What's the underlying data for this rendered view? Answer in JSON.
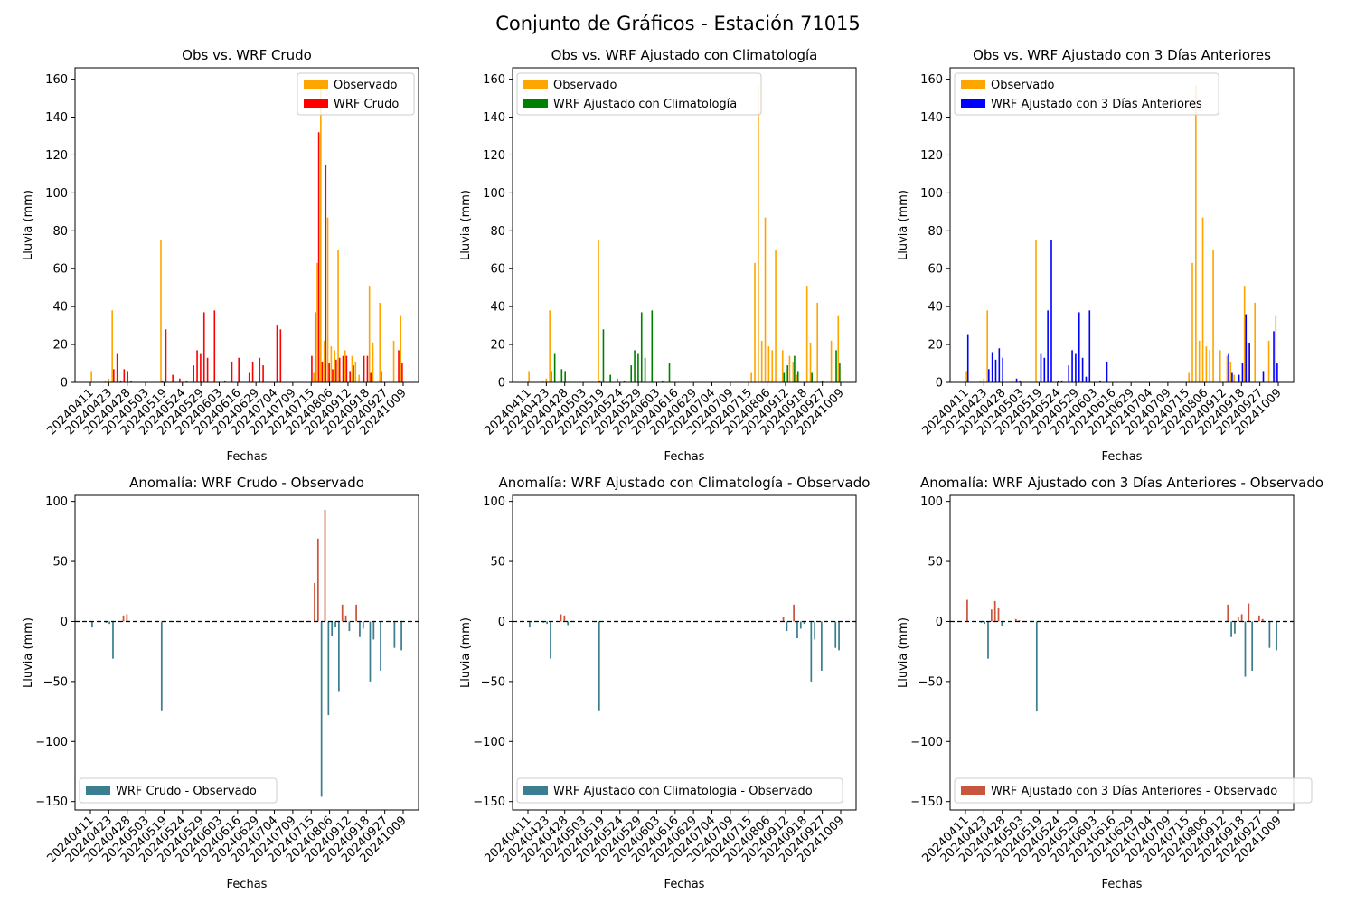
{
  "figure": {
    "title": "Conjunto de Gráficos - Estación 71015"
  },
  "colors": {
    "observed": "#FFA500",
    "wrf_raw": "#FF0000",
    "wrf_clim": "#008000",
    "wrf_3d": "#0000FF",
    "anomaly_negative": "#3B7E8F",
    "anomaly_positive": "#C8553D"
  },
  "chart_data": [
    {
      "type": "bar",
      "title": "Obs vs. WRF Crudo",
      "xlabel": "Fechas",
      "ylabel": "Lluvia (mm)",
      "ylim": [
        0,
        166
      ],
      "yticks": [
        0,
        20,
        40,
        60,
        80,
        100,
        120,
        140,
        160
      ],
      "xticklabels": [
        "20240411",
        "20240423",
        "20240428",
        "20240503",
        "20240519",
        "20240524",
        "20240529",
        "20240603",
        "20240616",
        "20240629",
        "20240704",
        "20240709",
        "20240715",
        "20240806",
        "20240912",
        "20240918",
        "20240927",
        "20241009"
      ],
      "legend": "top-right",
      "series": [
        {
          "name": "Observado",
          "color_key": "observed",
          "values": [
            6,
            0,
            0,
            0,
            1,
            2,
            38,
            0,
            0,
            0,
            0,
            0,
            0,
            0,
            0,
            0,
            0,
            0,
            0,
            0,
            75,
            0,
            0,
            0,
            0,
            0,
            0,
            0,
            0,
            0,
            0,
            0,
            0,
            0,
            0,
            0,
            0,
            0,
            0,
            0,
            0,
            0,
            0,
            0,
            0,
            0,
            0,
            0,
            0,
            0,
            0,
            0,
            0,
            0,
            0,
            0,
            0,
            0,
            0,
            0,
            0,
            0,
            0,
            0,
            5,
            63,
            157,
            22,
            87,
            19,
            17,
            70,
            0,
            17,
            0,
            14,
            11,
            4,
            0,
            0,
            51,
            21,
            0,
            42,
            0,
            0,
            0,
            22,
            0,
            35
          ]
        },
        {
          "name": "WRF Crudo",
          "color_key": "wrf_raw",
          "values": [
            0,
            0,
            0,
            0,
            0,
            0,
            7,
            15,
            1,
            7,
            6,
            1,
            0,
            0,
            0,
            0,
            0,
            0,
            0,
            0,
            1,
            28,
            0,
            4,
            0,
            2,
            0,
            1,
            0,
            9,
            17,
            15,
            37,
            13,
            0,
            38,
            0,
            0,
            1,
            0,
            11,
            0,
            13,
            0,
            0,
            5,
            11,
            0,
            13,
            9,
            0,
            0,
            0,
            30,
            28,
            0,
            0,
            0,
            0,
            0,
            0,
            0,
            0,
            14,
            37,
            132,
            11,
            115,
            10,
            7,
            12,
            13,
            14,
            14,
            6,
            9,
            0,
            0,
            14,
            14,
            5,
            0,
            0,
            6,
            0,
            0,
            0,
            0,
            17,
            10
          ]
        }
      ]
    },
    {
      "type": "bar",
      "title": "Obs vs. WRF Ajustado con Climatología",
      "xlabel": "Fechas",
      "ylabel": "Lluvia (mm)",
      "ylim": [
        0,
        166
      ],
      "yticks": [
        0,
        20,
        40,
        60,
        80,
        100,
        120,
        140,
        160
      ],
      "xticklabels": [
        "20240411",
        "20240423",
        "20240428",
        "20240503",
        "20240519",
        "20240524",
        "20240529",
        "20240603",
        "20240616",
        "20240629",
        "20240704",
        "20240709",
        "20240715",
        "20240806",
        "20240912",
        "20240918",
        "20240927",
        "20241009"
      ],
      "legend": "top-left",
      "series": [
        {
          "name": "Observado",
          "color_key": "observed",
          "values": [
            6,
            0,
            0,
            0,
            1,
            2,
            38,
            0,
            0,
            0,
            0,
            0,
            0,
            0,
            0,
            0,
            0,
            0,
            0,
            0,
            75,
            0,
            0,
            0,
            0,
            0,
            0,
            0,
            0,
            0,
            0,
            0,
            0,
            0,
            0,
            0,
            0,
            0,
            0,
            0,
            0,
            0,
            0,
            0,
            0,
            0,
            0,
            0,
            0,
            0,
            0,
            0,
            0,
            0,
            0,
            0,
            0,
            0,
            0,
            0,
            0,
            0,
            0,
            0,
            5,
            63,
            157,
            22,
            87,
            19,
            17,
            70,
            0,
            17,
            0,
            14,
            11,
            4,
            0,
            0,
            51,
            21,
            0,
            42,
            0,
            0,
            0,
            22,
            0,
            35
          ]
        },
        {
          "name": "WRF Ajustado con Climatología",
          "color_key": "wrf_clim",
          "values": [
            0,
            0,
            0,
            0,
            0,
            0,
            6,
            15,
            0,
            7,
            6,
            0,
            0,
            0,
            0,
            0,
            0,
            0,
            0,
            0,
            1,
            28,
            0,
            4,
            0,
            2,
            0,
            1,
            0,
            9,
            17,
            15,
            37,
            13,
            0,
            38,
            0,
            0,
            1,
            0,
            10,
            0,
            0,
            0,
            0,
            0,
            0,
            0,
            0,
            0,
            0,
            0,
            0,
            0,
            0,
            0,
            0,
            0,
            0,
            0,
            0,
            0,
            0,
            0,
            0,
            0,
            0,
            0,
            0,
            0,
            0,
            0,
            0,
            5,
            9,
            0,
            14,
            6,
            0,
            0,
            0,
            5,
            0,
            0,
            1,
            0,
            0,
            0,
            17,
            10
          ]
        }
      ]
    },
    {
      "type": "bar",
      "title": "Obs vs. WRF Ajustado con 3 Días Anteriores",
      "xlabel": "Fechas",
      "ylabel": "Lluvia (mm)",
      "ylim": [
        0,
        166
      ],
      "yticks": [
        0,
        20,
        40,
        60,
        80,
        100,
        120,
        140,
        160
      ],
      "xticklabels": [
        "20240411",
        "20240423",
        "20240428",
        "20240503",
        "20240519",
        "20240524",
        "20240529",
        "20240603",
        "20240616",
        "20240629",
        "20240704",
        "20240709",
        "20240715",
        "20240806",
        "20240912",
        "20240918",
        "20240927",
        "20241009"
      ],
      "legend": "top-left",
      "series": [
        {
          "name": "Observado",
          "color_key": "observed",
          "values": [
            6,
            0,
            0,
            0,
            1,
            2,
            38,
            0,
            0,
            0,
            0,
            0,
            0,
            0,
            0,
            0,
            0,
            0,
            0,
            0,
            75,
            0,
            0,
            0,
            0,
            0,
            0,
            0,
            0,
            0,
            0,
            0,
            0,
            0,
            0,
            0,
            0,
            0,
            0,
            0,
            0,
            0,
            0,
            0,
            0,
            0,
            0,
            0,
            0,
            0,
            0,
            0,
            0,
            0,
            0,
            0,
            0,
            0,
            0,
            0,
            0,
            0,
            0,
            0,
            5,
            63,
            157,
            22,
            87,
            19,
            17,
            70,
            0,
            17,
            0,
            14,
            11,
            4,
            0,
            0,
            51,
            21,
            0,
            42,
            0,
            0,
            0,
            22,
            0,
            35
          ]
        },
        {
          "name": "WRF Ajustado con 3 Días Anteriores",
          "color_key": "wrf_3d",
          "values": [
            25,
            0,
            0,
            0,
            0,
            0,
            7,
            16,
            12,
            18,
            13,
            0,
            0,
            0,
            2,
            1,
            0,
            0,
            0,
            0,
            0,
            15,
            13,
            38,
            75,
            0,
            1,
            1,
            0,
            9,
            17,
            15,
            37,
            13,
            3,
            38,
            0,
            0,
            1,
            0,
            11,
            0,
            0,
            0,
            0,
            0,
            0,
            0,
            0,
            0,
            0,
            0,
            0,
            0,
            0,
            0,
            0,
            0,
            0,
            0,
            0,
            0,
            0,
            0,
            0,
            0,
            0,
            0,
            0,
            0,
            0,
            0,
            0,
            0,
            0,
            15,
            5,
            0,
            4,
            10,
            36,
            21,
            0,
            0,
            0,
            6,
            0,
            0,
            27,
            10
          ]
        }
      ]
    },
    {
      "type": "bar",
      "title": "Anomalía: WRF Crudo - Observado",
      "xlabel": "Fechas",
      "ylabel": "Lluvia (mm)",
      "ylim": [
        -157,
        105
      ],
      "yticks": [
        -150,
        -100,
        -50,
        0,
        50,
        100
      ],
      "xticklabels": [
        "20240411",
        "20240423",
        "20240428",
        "20240503",
        "20240519",
        "20240524",
        "20240529",
        "20240603",
        "20240616",
        "20240629",
        "20240704",
        "20240709",
        "20240715",
        "20240806",
        "20240912",
        "20240918",
        "20240927",
        "20241009"
      ],
      "legend": "bottom-left",
      "series": [
        {
          "name": "WRF Crudo - Observado",
          "values": [
            -5,
            0,
            0,
            0,
            -1,
            -2,
            -31,
            0,
            0,
            5,
            6,
            0,
            0,
            0,
            0,
            0,
            0,
            0,
            0,
            0,
            -74,
            0,
            0,
            0,
            0,
            0,
            0,
            0,
            0,
            0,
            0,
            0,
            0,
            0,
            0,
            0,
            0,
            0,
            0,
            0,
            0,
            0,
            0,
            0,
            0,
            0,
            0,
            0,
            0,
            0,
            0,
            0,
            0,
            0,
            0,
            0,
            0,
            0,
            0,
            0,
            0,
            0,
            0,
            0,
            32,
            69,
            -146,
            93,
            -78,
            -12,
            -5,
            -58,
            14,
            5,
            -8,
            0,
            14,
            -13,
            -6,
            0,
            -50,
            -15,
            0,
            -41,
            0,
            0,
            0,
            -22,
            0,
            -24
          ]
        }
      ]
    },
    {
      "type": "bar",
      "title": "Anomalía: WRF Ajustado con Climatología - Observado",
      "xlabel": "Fechas",
      "ylabel": "Lluvia (mm)",
      "ylim": [
        -157,
        105
      ],
      "yticks": [
        -150,
        -100,
        -50,
        0,
        50,
        100
      ],
      "xticklabels": [
        "20240411",
        "20240423",
        "20240428",
        "20240503",
        "20240519",
        "20240524",
        "20240529",
        "20240603",
        "20240616",
        "20240629",
        "20240704",
        "20240709",
        "20240715",
        "20240806",
        "20240912",
        "20240918",
        "20240927",
        "20241009"
      ],
      "legend": "bottom-left",
      "series": [
        {
          "name": "WRF Ajustado con Climatologia - Observado",
          "values": [
            -5,
            0,
            0,
            0,
            -1,
            -2,
            -31,
            0,
            0,
            6,
            5,
            -3,
            0,
            0,
            0,
            0,
            0,
            0,
            0,
            0,
            -74,
            0,
            0,
            0,
            0,
            0,
            0,
            0,
            0,
            0,
            0,
            0,
            0,
            0,
            0,
            0,
            0,
            0,
            0,
            0,
            0,
            0,
            0,
            0,
            0,
            0,
            0,
            0,
            0,
            0,
            0,
            0,
            0,
            0,
            0,
            0,
            0,
            0,
            0,
            0,
            0,
            0,
            0,
            0,
            0,
            0,
            0,
            0,
            0,
            0,
            0,
            0,
            0,
            4,
            -8,
            0,
            14,
            -14,
            -6,
            -2,
            0,
            -50,
            -15,
            0,
            -41,
            0,
            0,
            0,
            -22,
            -24
          ]
        }
      ]
    },
    {
      "type": "bar",
      "title": "Anomalía: WRF Ajustado con 3 Días Anteriores - Observado",
      "xlabel": "Fechas",
      "ylabel": "Lluvia (mm)",
      "ylim": [
        -157,
        105
      ],
      "yticks": [
        -150,
        -100,
        -50,
        0,
        50,
        100
      ],
      "xticklabels": [
        "20240411",
        "20240423",
        "20240428",
        "20240503",
        "20240519",
        "20240524",
        "20240529",
        "20240603",
        "20240616",
        "20240629",
        "20240704",
        "20240709",
        "20240715",
        "20240806",
        "20240912",
        "20240918",
        "20240927",
        "20241009"
      ],
      "legend": "bottom-left",
      "series": [
        {
          "name": "WRF Ajustado con 3 Días Anteriores - Observado",
          "values": [
            18,
            0,
            0,
            0,
            -1,
            -2,
            -31,
            10,
            17,
            11,
            -4,
            0,
            0,
            0,
            2,
            1,
            0,
            0,
            0,
            0,
            -75,
            0,
            0,
            0,
            0,
            0,
            0,
            0,
            0,
            0,
            0,
            0,
            0,
            0,
            0,
            0,
            0,
            0,
            0,
            0,
            0,
            0,
            0,
            0,
            0,
            0,
            0,
            0,
            0,
            0,
            0,
            0,
            0,
            0,
            0,
            0,
            0,
            0,
            0,
            0,
            0,
            0,
            0,
            0,
            0,
            0,
            0,
            0,
            0,
            0,
            0,
            0,
            0,
            0,
            0,
            14,
            -13,
            -10,
            4,
            6,
            -46,
            15,
            -41,
            0,
            5,
            2,
            0,
            -22,
            0,
            -24
          ]
        }
      ]
    }
  ]
}
